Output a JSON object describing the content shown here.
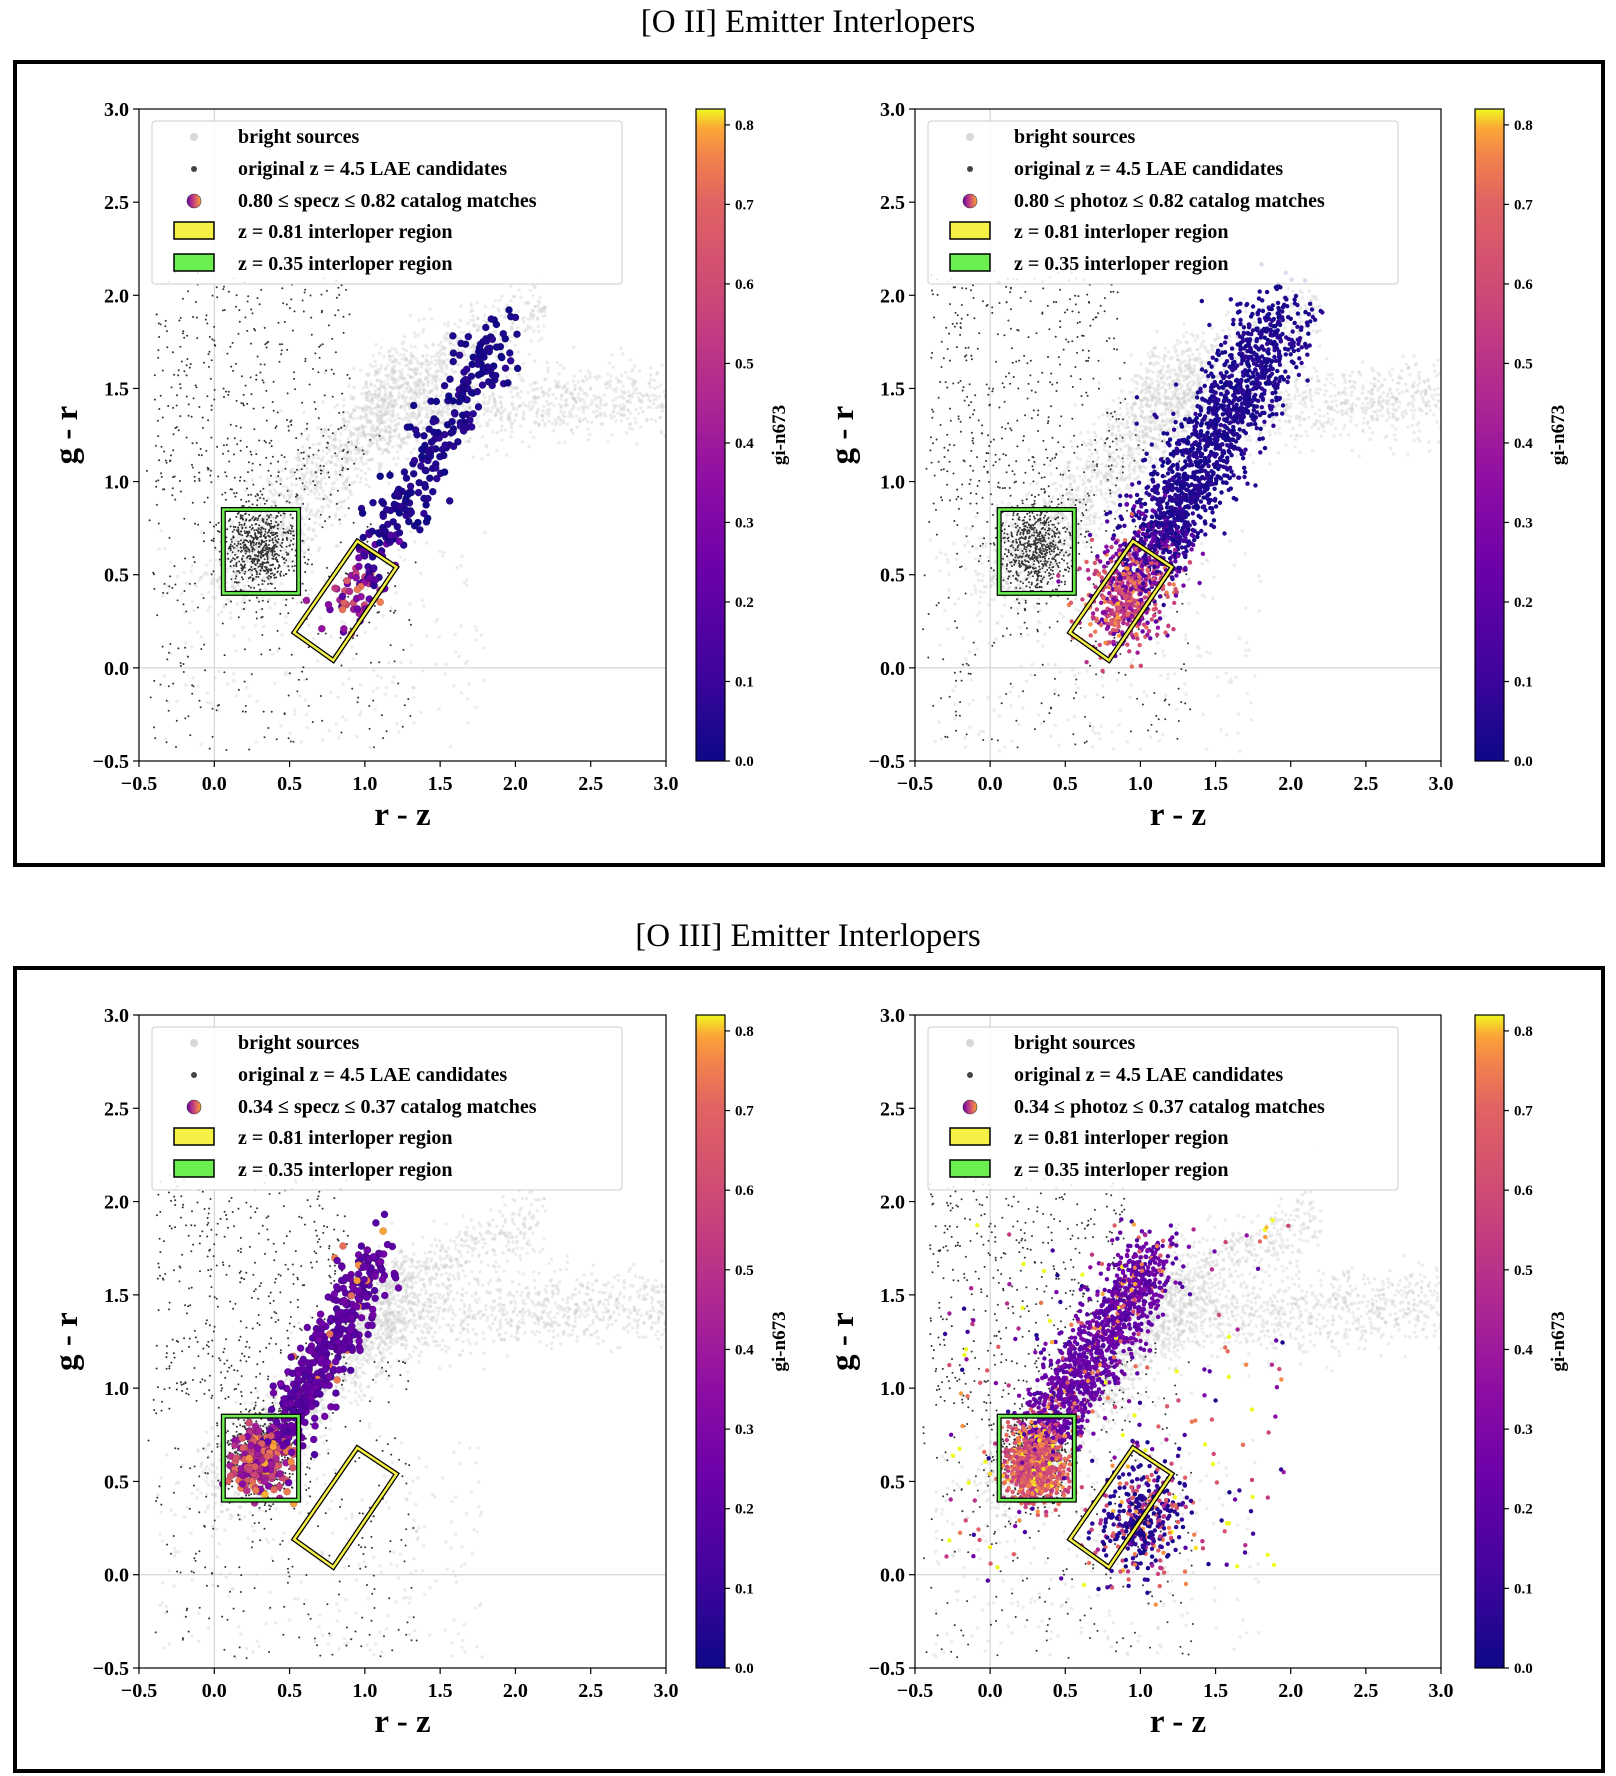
{
  "sections": [
    {
      "title": "[O II] Emitter Interlopers"
    },
    {
      "title": "[O III] Emitter Interlopers"
    }
  ],
  "chart_data": [
    {
      "type": "scatter",
      "title": "",
      "section": "[O II] Emitter Interlopers",
      "xlabel": "r - z",
      "ylabel": "g - r",
      "colorbar_label": "gi-n673",
      "xlim": [
        -0.5,
        3.0
      ],
      "ylim": [
        -0.5,
        3.0
      ],
      "clim": [
        0.0,
        0.82
      ],
      "xticks": [
        "−0.5",
        "0.0",
        "0.5",
        "1.0",
        "1.5",
        "2.0",
        "2.5",
        "3.0"
      ],
      "yticks": [
        "−0.5",
        "0.0",
        "0.5",
        "1.0",
        "1.5",
        "2.0",
        "2.5",
        "3.0"
      ],
      "cbticks": [
        "0.0",
        "0.1",
        "0.2",
        "0.3",
        "0.4",
        "0.5",
        "0.6",
        "0.7",
        "0.8"
      ],
      "legend": [
        "bright sources",
        "original z = 4.5 LAE candidates",
        "0.80  ≤  specz  ≤  0.82 catalog matches",
        "z = 0.81 interloper region",
        "z = 0.35 interloper region"
      ],
      "interloper_regions": {
        "z081": [
          [
            0.53,
            0.19
          ],
          [
            0.79,
            0.04
          ],
          [
            1.21,
            0.54
          ],
          [
            0.95,
            0.68
          ]
        ],
        "z035": [
          [
            0.06,
            0.4
          ],
          [
            0.56,
            0.4
          ],
          [
            0.56,
            0.85
          ],
          [
            0.06,
            0.85
          ]
        ]
      },
      "series": [
        {
          "name": "bright sources",
          "model": "stellar-locus"
        },
        {
          "name": "original z = 4.5 LAE candidates",
          "model": "box-cluster",
          "center": [
            0.3,
            0.65
          ]
        },
        {
          "name": "0.80 ≤ specz ≤ 0.82 catalog matches",
          "model": "diagonal",
          "center": [
            0.85,
            0.3
          ],
          "end": [
            1.95,
            1.85
          ],
          "count": 320,
          "marker": "large"
        }
      ]
    },
    {
      "type": "scatter",
      "title": "",
      "section": "[O II] Emitter Interlopers",
      "xlabel": "r - z",
      "ylabel": "g - r",
      "colorbar_label": "gi-n673",
      "xlim": [
        -0.5,
        3.0
      ],
      "ylim": [
        -0.5,
        3.0
      ],
      "clim": [
        0.0,
        0.82
      ],
      "xticks": [
        "−0.5",
        "0.0",
        "0.5",
        "1.0",
        "1.5",
        "2.0",
        "2.5",
        "3.0"
      ],
      "yticks": [
        "−0.5",
        "0.0",
        "0.5",
        "1.0",
        "1.5",
        "2.0",
        "2.5",
        "3.0"
      ],
      "cbticks": [
        "0.0",
        "0.1",
        "0.2",
        "0.3",
        "0.4",
        "0.5",
        "0.6",
        "0.7",
        "0.8"
      ],
      "legend": [
        "bright sources",
        "original z = 4.5 LAE candidates",
        "0.80  ≤  photoz  ≤  0.82 catalog matches",
        "z = 0.81 interloper region",
        "z = 0.35 interloper region"
      ],
      "interloper_regions": {
        "z081": [
          [
            0.53,
            0.19
          ],
          [
            0.79,
            0.04
          ],
          [
            1.21,
            0.54
          ],
          [
            0.95,
            0.68
          ]
        ],
        "z035": [
          [
            0.06,
            0.4
          ],
          [
            0.56,
            0.4
          ],
          [
            0.56,
            0.85
          ],
          [
            0.06,
            0.85
          ]
        ]
      },
      "series": [
        {
          "name": "bright sources",
          "model": "stellar-locus"
        },
        {
          "name": "original z = 4.5 LAE candidates",
          "model": "box-cluster",
          "center": [
            0.3,
            0.65
          ]
        },
        {
          "name": "0.80 ≤ photoz ≤ 0.82 catalog matches",
          "model": "diagonal",
          "center": [
            0.85,
            0.3
          ],
          "end": [
            1.95,
            1.9
          ],
          "count": 2200,
          "marker": "small"
        }
      ]
    },
    {
      "type": "scatter",
      "title": "",
      "section": "[O III] Emitter Interlopers",
      "xlabel": "r - z",
      "ylabel": "g - r",
      "colorbar_label": "gi-n673",
      "xlim": [
        -0.5,
        3.0
      ],
      "ylim": [
        -0.5,
        3.0
      ],
      "clim": [
        0.0,
        0.82
      ],
      "xticks": [
        "−0.5",
        "0.0",
        "0.5",
        "1.0",
        "1.5",
        "2.0",
        "2.5",
        "3.0"
      ],
      "yticks": [
        "−0.5",
        "0.0",
        "0.5",
        "1.0",
        "1.5",
        "2.0",
        "2.5",
        "3.0"
      ],
      "cbticks": [
        "0.0",
        "0.1",
        "0.2",
        "0.3",
        "0.4",
        "0.5",
        "0.6",
        "0.7",
        "0.8"
      ],
      "legend": [
        "bright sources",
        "original z = 4.5 LAE candidates",
        "0.34  ≤  specz  ≤  0.37 catalog matches",
        "z = 0.81 interloper region",
        "z = 0.35 interloper region"
      ],
      "interloper_regions": {
        "z081": [
          [
            0.53,
            0.19
          ],
          [
            0.79,
            0.04
          ],
          [
            1.21,
            0.54
          ],
          [
            0.95,
            0.68
          ]
        ],
        "z035": [
          [
            0.06,
            0.4
          ],
          [
            0.56,
            0.4
          ],
          [
            0.56,
            0.85
          ],
          [
            0.06,
            0.85
          ]
        ]
      },
      "series": [
        {
          "name": "bright sources",
          "model": "stellar-locus"
        },
        {
          "name": "original z = 4.5 LAE candidates",
          "model": "box-cluster",
          "center": [
            0.3,
            0.65
          ]
        },
        {
          "name": "0.34 ≤ specz ≤ 0.37 catalog matches",
          "model": "oiii",
          "center": [
            0.3,
            0.6
          ],
          "end": [
            1.1,
            1.6
          ],
          "count": 650,
          "marker": "large"
        }
      ]
    },
    {
      "type": "scatter",
      "title": "",
      "section": "[O III] Emitter Interlopers",
      "xlabel": "r - z",
      "ylabel": "g - r",
      "colorbar_label": "gi-n673",
      "xlim": [
        -0.5,
        3.0
      ],
      "ylim": [
        -0.5,
        3.0
      ],
      "clim": [
        0.0,
        0.82
      ],
      "xticks": [
        "−0.5",
        "0.0",
        "0.5",
        "1.0",
        "1.5",
        "2.0",
        "2.5",
        "3.0"
      ],
      "yticks": [
        "−0.5",
        "0.0",
        "0.5",
        "1.0",
        "1.5",
        "2.0",
        "2.5",
        "3.0"
      ],
      "cbticks": [
        "0.0",
        "0.1",
        "0.2",
        "0.3",
        "0.4",
        "0.5",
        "0.6",
        "0.7",
        "0.8"
      ],
      "legend": [
        "bright sources",
        "original z = 4.5 LAE candidates",
        "0.34  ≤  photoz  ≤  0.37 catalog matches",
        "z = 0.81 interloper region",
        "z = 0.35 interloper region"
      ],
      "interloper_regions": {
        "z081": [
          [
            0.53,
            0.19
          ],
          [
            0.79,
            0.04
          ],
          [
            1.21,
            0.54
          ],
          [
            0.95,
            0.68
          ]
        ],
        "z035": [
          [
            0.06,
            0.4
          ],
          [
            0.56,
            0.4
          ],
          [
            0.56,
            0.85
          ],
          [
            0.06,
            0.85
          ]
        ]
      },
      "series": [
        {
          "name": "bright sources",
          "model": "stellar-locus"
        },
        {
          "name": "original z = 4.5 LAE candidates",
          "model": "box-cluster",
          "center": [
            0.3,
            0.65
          ]
        },
        {
          "name": "0.34 ≤ photoz ≤ 0.37 catalog matches",
          "model": "oiii-photoz",
          "center": [
            0.3,
            0.6
          ],
          "end": [
            1.1,
            1.6
          ],
          "count": 2600,
          "marker": "small"
        }
      ]
    }
  ]
}
